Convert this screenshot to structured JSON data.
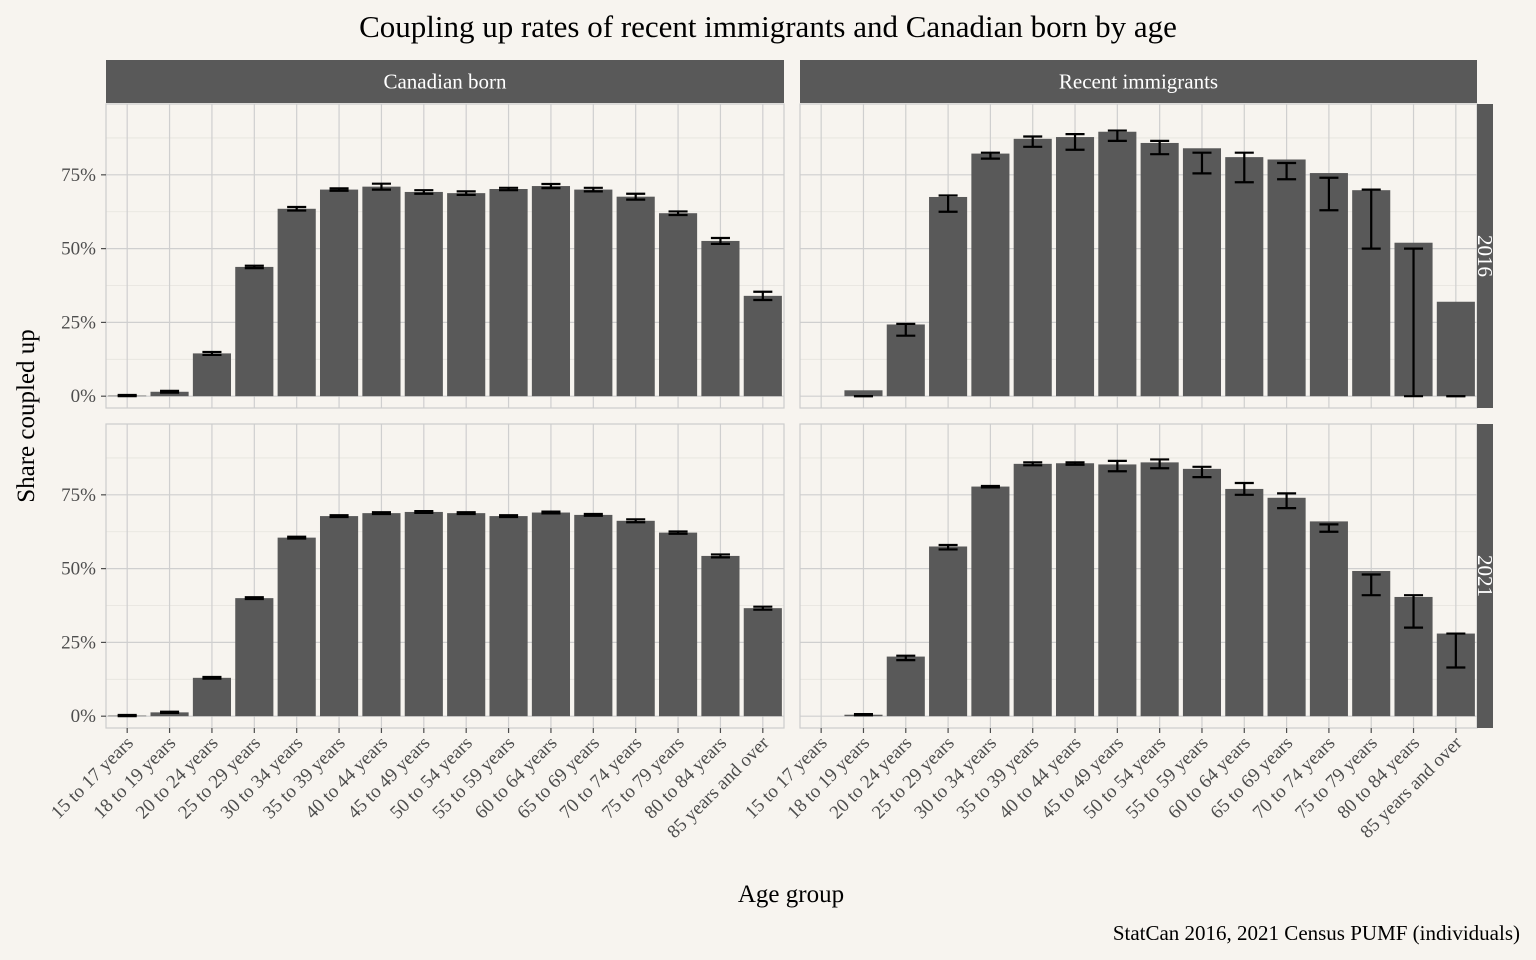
{
  "chart_data": {
    "type": "bar",
    "title": "Coupling up rates of recent immigrants and Canadian born by age",
    "xlabel": "Age group",
    "ylabel": "Share coupled up",
    "caption": "StatCan 2016, 2021 Census PUMF (individuals)",
    "ylim": [
      0,
      1
    ],
    "y_ticks": [
      "0%",
      "25%",
      "50%",
      "75%"
    ],
    "grid": true,
    "facet_columns": [
      "Canadian born",
      "Recent immigrants"
    ],
    "facet_rows": [
      "2016",
      "2021"
    ],
    "categories": [
      "15 to 17 years",
      "18 to 19 years",
      "20 to 24 years",
      "25 to 29 years",
      "30 to 34 years",
      "35 to 39 years",
      "40 to 44 years",
      "45 to 49 years",
      "50 to 54 years",
      "55 to 59 years",
      "60 to 64 years",
      "65 to 69 years",
      "70 to 74 years",
      "75 to 79 years",
      "80 to 84 years",
      "85 years and over"
    ],
    "panels": [
      {
        "column": "Canadian born",
        "row": "2016",
        "values": [
          0.002,
          0.015,
          0.145,
          0.438,
          0.635,
          0.7,
          0.71,
          0.692,
          0.688,
          0.702,
          0.712,
          0.7,
          0.676,
          0.62,
          0.526,
          0.34
        ],
        "lower": [
          0.0,
          0.012,
          0.14,
          0.434,
          0.629,
          0.696,
          0.7,
          0.686,
          0.682,
          0.698,
          0.705,
          0.694,
          0.666,
          0.614,
          0.516,
          0.326
        ],
        "upper": [
          0.004,
          0.018,
          0.15,
          0.442,
          0.641,
          0.704,
          0.72,
          0.698,
          0.694,
          0.706,
          0.719,
          0.706,
          0.686,
          0.626,
          0.536,
          0.354
        ]
      },
      {
        "column": "Recent immigrants",
        "row": "2016",
        "values": [
          0.0,
          0.02,
          0.243,
          0.675,
          0.822,
          0.872,
          0.878,
          0.896,
          0.858,
          0.84,
          0.81,
          0.802,
          0.756,
          0.698,
          0.52,
          0.32
        ],
        "lower": [
          null,
          0.0,
          0.205,
          0.625,
          0.805,
          0.845,
          0.835,
          0.865,
          0.82,
          0.755,
          0.725,
          0.735,
          0.63,
          0.5,
          0.0,
          0.0
        ],
        "upper": [
          null,
          0.0,
          0.245,
          0.68,
          0.825,
          0.88,
          0.888,
          0.9,
          0.865,
          0.825,
          0.825,
          0.79,
          0.74,
          0.7,
          0.5,
          0.0
        ]
      },
      {
        "column": "Canadian born",
        "row": "2021",
        "values": [
          0.002,
          0.013,
          0.13,
          0.4,
          0.605,
          0.678,
          0.688,
          0.692,
          0.688,
          0.678,
          0.69,
          0.682,
          0.662,
          0.622,
          0.543,
          0.366
        ],
        "lower": [
          0.0,
          0.011,
          0.127,
          0.397,
          0.602,
          0.675,
          0.685,
          0.689,
          0.685,
          0.675,
          0.687,
          0.679,
          0.657,
          0.618,
          0.538,
          0.361
        ],
        "upper": [
          0.004,
          0.015,
          0.133,
          0.403,
          0.608,
          0.681,
          0.691,
          0.695,
          0.691,
          0.681,
          0.693,
          0.685,
          0.667,
          0.626,
          0.548,
          0.371
        ]
      },
      {
        "column": "Recent immigrants",
        "row": "2021",
        "values": [
          0.0,
          0.005,
          0.202,
          0.575,
          0.778,
          0.855,
          0.857,
          0.853,
          0.86,
          0.838,
          0.77,
          0.74,
          0.66,
          0.492,
          0.404,
          0.28
        ],
        "lower": [
          null,
          0.003,
          0.19,
          0.565,
          0.775,
          0.85,
          0.852,
          0.83,
          0.84,
          0.81,
          0.75,
          0.705,
          0.625,
          0.41,
          0.3,
          0.165
        ],
        "upper": [
          null,
          0.007,
          0.205,
          0.58,
          0.78,
          0.86,
          0.86,
          0.865,
          0.87,
          0.845,
          0.79,
          0.755,
          0.65,
          0.48,
          0.41,
          0.28
        ]
      }
    ],
    "colors": {
      "background": "#f7f4ef",
      "panel": "#f7f4ef",
      "bar": "#595959",
      "strip": "#595959",
      "grid": "#cfcfcf",
      "grid_minor": "#e6e3de",
      "errorbar": "#000000"
    }
  }
}
